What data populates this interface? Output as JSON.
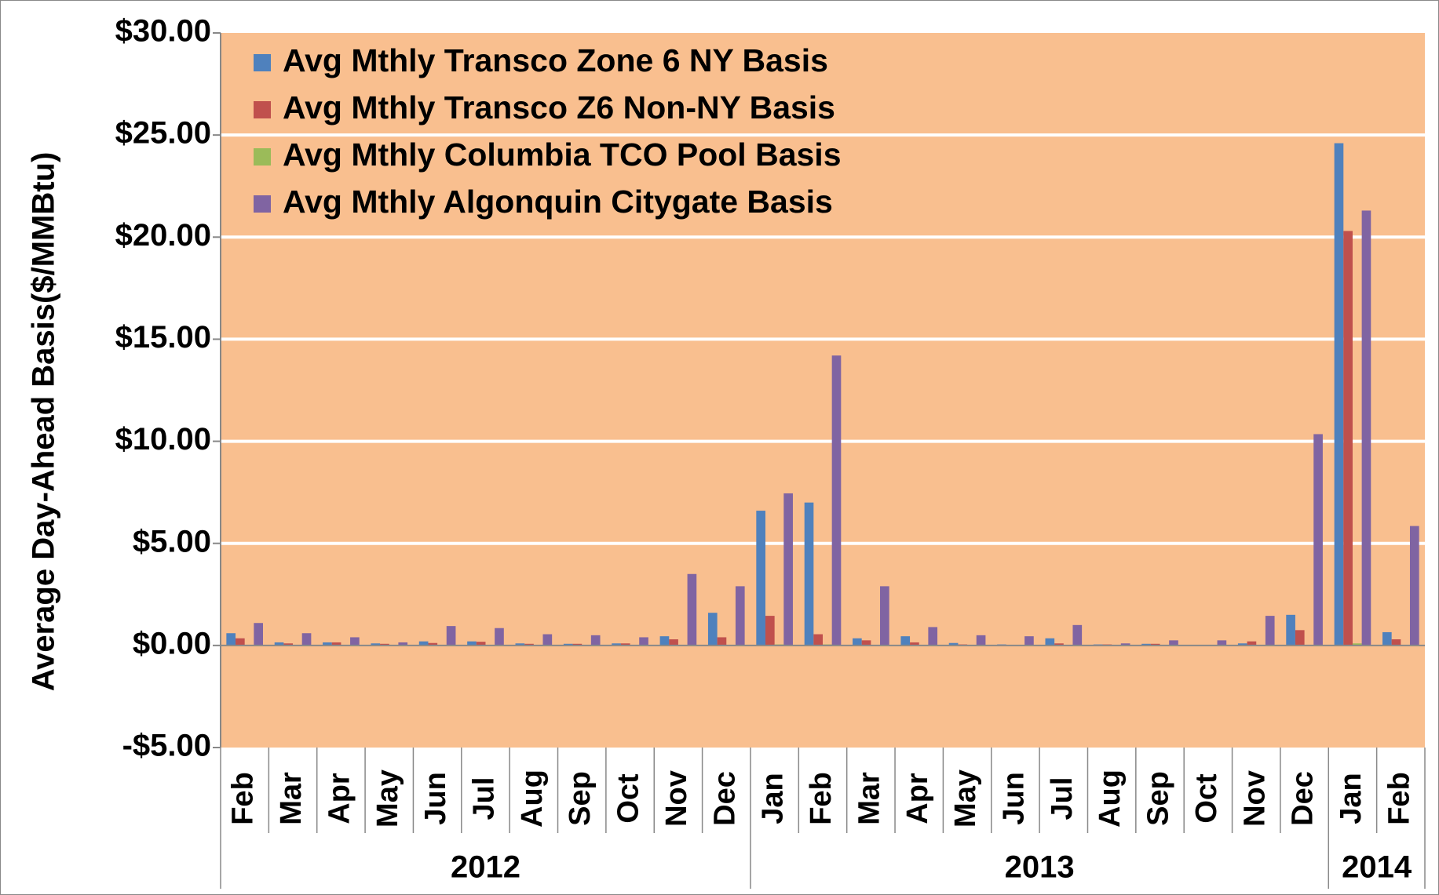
{
  "chart_data": {
    "type": "bar",
    "y_label": "Average Day-Ahead Basis($/MMBtu)",
    "groups": [
      {
        "name": "2012",
        "categories": [
          "Feb",
          "Mar",
          "Apr",
          "May",
          "Jun",
          "Jul",
          "Aug",
          "Sep",
          "Oct",
          "Nov",
          "Dec"
        ]
      },
      {
        "name": "2013",
        "categories": [
          "Jan",
          "Feb",
          "Mar",
          "Apr",
          "May",
          "Jun",
          "Jul",
          "Aug",
          "Sep",
          "Oct",
          "Nov",
          "Dec"
        ]
      },
      {
        "name": "2014",
        "categories": [
          "Jan",
          "Feb"
        ]
      }
    ],
    "series": [
      {
        "name": "Avg Mthly Transco Zone 6 NY Basis",
        "color": "#4f81bd",
        "values": [
          0.6,
          0.15,
          0.15,
          0.1,
          0.2,
          0.2,
          0.1,
          0.08,
          0.1,
          0.45,
          1.6,
          6.6,
          7.0,
          0.35,
          0.45,
          0.12,
          0.05,
          0.35,
          0.05,
          0.08,
          0.02,
          0.1,
          1.5,
          24.6,
          0.65
        ]
      },
      {
        "name": "Avg Mthly Transco Z6 Non-NY Basis",
        "color": "#c0504d",
        "values": [
          0.35,
          0.1,
          0.15,
          0.08,
          0.12,
          0.18,
          0.08,
          0.08,
          0.1,
          0.3,
          0.4,
          1.45,
          0.55,
          0.25,
          0.15,
          0.05,
          0.03,
          0.1,
          0.05,
          0.08,
          0.02,
          0.2,
          0.75,
          20.3,
          0.3
        ]
      },
      {
        "name": "Avg Mthly Columbia TCO Pool Basis",
        "color": "#9bbb59",
        "values": [
          0.03,
          0.02,
          0.02,
          0.02,
          0.02,
          0.02,
          0.02,
          0.02,
          0.02,
          0.03,
          0.03,
          0.05,
          0.05,
          0.02,
          0.02,
          0.02,
          0.02,
          0.02,
          0.02,
          0.02,
          0.02,
          0.02,
          0.03,
          0.1,
          0.03
        ]
      },
      {
        "name": "Avg Mthly Algonquin Citygate Basis",
        "color": "#8064a2",
        "values": [
          1.1,
          0.6,
          0.4,
          0.15,
          0.95,
          0.85,
          0.55,
          0.5,
          0.4,
          3.5,
          2.9,
          7.45,
          14.2,
          2.9,
          0.9,
          0.5,
          0.45,
          1.0,
          0.1,
          0.25,
          0.25,
          1.45,
          10.35,
          21.3,
          5.85
        ]
      }
    ],
    "ylim": [
      -5,
      30
    ],
    "yticks": [
      {
        "value": -5,
        "label": "-$5.00"
      },
      {
        "value": 0,
        "label": "$0.00"
      },
      {
        "value": 5,
        "label": "$5.00"
      },
      {
        "value": 10,
        "label": "$10.00"
      },
      {
        "value": 15,
        "label": "$15.00"
      },
      {
        "value": 20,
        "label": "$20.00"
      },
      {
        "value": 25,
        "label": "$25.00"
      },
      {
        "value": 30,
        "label": "$30.00"
      }
    ],
    "grid": true,
    "plot_background": "#f9bf8f",
    "legend": "top-left"
  }
}
